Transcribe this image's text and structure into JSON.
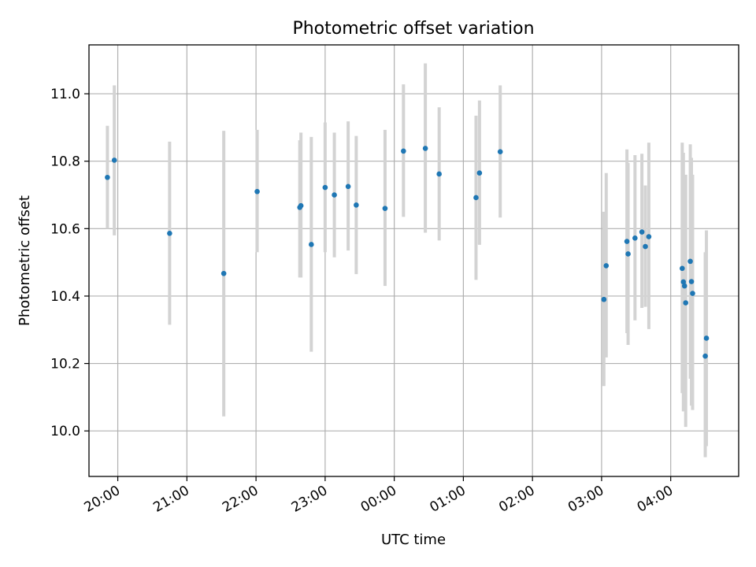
{
  "chart_data": {
    "type": "scatter",
    "title": "Photometric offset variation",
    "xlabel": "UTC time",
    "ylabel": "Photometric offset",
    "x_axis_kind": "time",
    "x_ticks": [
      "20:00",
      "21:00",
      "22:00",
      "23:00",
      "00:00",
      "01:00",
      "02:00",
      "03:00",
      "04:00"
    ],
    "xlim": [
      "19:35",
      "04:59"
    ],
    "y_ticks": [
      10.0,
      10.2,
      10.4,
      10.6,
      10.8,
      11.0
    ],
    "ylim": [
      9.865,
      11.145
    ],
    "grid": true,
    "colors": {
      "points": "#1f77b4",
      "error_bars": "#d3d3d3",
      "grid": "#b0b0b0",
      "axes": "#000000"
    },
    "points": [
      {
        "x": "19:51",
        "y": 10.752,
        "y_low": 10.6,
        "y_high": 10.905
      },
      {
        "x": "19:57",
        "y": 10.803,
        "y_low": 10.58,
        "y_high": 11.025
      },
      {
        "x": "20:45",
        "y": 10.586,
        "y_low": 10.315,
        "y_high": 10.858
      },
      {
        "x": "21:32",
        "y": 10.467,
        "y_low": 10.043,
        "y_high": 10.89
      },
      {
        "x": "22:01",
        "y": 10.71,
        "y_low": 10.53,
        "y_high": 10.893
      },
      {
        "x": "22:38",
        "y": 10.663,
        "y_low": 10.455,
        "y_high": 10.862
      },
      {
        "x": "22:39",
        "y": 10.668,
        "y_low": 10.455,
        "y_high": 10.885
      },
      {
        "x": "22:48",
        "y": 10.553,
        "y_low": 10.235,
        "y_high": 10.872
      },
      {
        "x": "23:00",
        "y": 10.722,
        "y_low": 10.53,
        "y_high": 10.915
      },
      {
        "x": "23:08",
        "y": 10.7,
        "y_low": 10.515,
        "y_high": 10.885
      },
      {
        "x": "23:20",
        "y": 10.725,
        "y_low": 10.535,
        "y_high": 10.918
      },
      {
        "x": "23:27",
        "y": 10.67,
        "y_low": 10.465,
        "y_high": 10.875
      },
      {
        "x": "23:52",
        "y": 10.66,
        "y_low": 10.43,
        "y_high": 10.893
      },
      {
        "x": "00:08",
        "y": 10.83,
        "y_low": 10.635,
        "y_high": 11.028
      },
      {
        "x": "00:27",
        "y": 10.838,
        "y_low": 10.588,
        "y_high": 11.09
      },
      {
        "x": "00:39",
        "y": 10.762,
        "y_low": 10.565,
        "y_high": 10.96
      },
      {
        "x": "01:11",
        "y": 10.692,
        "y_low": 10.448,
        "y_high": 10.935
      },
      {
        "x": "01:14",
        "y": 10.765,
        "y_low": 10.552,
        "y_high": 10.98
      },
      {
        "x": "01:32",
        "y": 10.828,
        "y_low": 10.633,
        "y_high": 11.025
      },
      {
        "x": "03:02",
        "y": 10.39,
        "y_low": 10.133,
        "y_high": 10.65
      },
      {
        "x": "03:04",
        "y": 10.49,
        "y_low": 10.218,
        "y_high": 10.765
      },
      {
        "x": "03:22",
        "y": 10.562,
        "y_low": 10.29,
        "y_high": 10.835
      },
      {
        "x": "03:23",
        "y": 10.525,
        "y_low": 10.255,
        "y_high": 10.795
      },
      {
        "x": "03:29",
        "y": 10.572,
        "y_low": 10.328,
        "y_high": 10.818
      },
      {
        "x": "03:35",
        "y": 10.59,
        "y_low": 10.365,
        "y_high": 10.822
      },
      {
        "x": "03:38",
        "y": 10.547,
        "y_low": 10.368,
        "y_high": 10.728
      },
      {
        "x": "03:41",
        "y": 10.576,
        "y_low": 10.302,
        "y_high": 10.855
      },
      {
        "x": "04:10",
        "y": 10.482,
        "y_low": 10.112,
        "y_high": 10.855
      },
      {
        "x": "04:11",
        "y": 10.442,
        "y_low": 10.058,
        "y_high": 10.825
      },
      {
        "x": "04:12",
        "y": 10.43,
        "y_low": 10.105,
        "y_high": 10.758
      },
      {
        "x": "04:13",
        "y": 10.38,
        "y_low": 10.012,
        "y_high": 10.76
      },
      {
        "x": "04:17",
        "y": 10.503,
        "y_low": 10.155,
        "y_high": 10.85
      },
      {
        "x": "04:18",
        "y": 10.443,
        "y_low": 10.075,
        "y_high": 10.81
      },
      {
        "x": "04:19",
        "y": 10.408,
        "y_low": 10.062,
        "y_high": 10.76
      },
      {
        "x": "04:30",
        "y": 10.222,
        "y_low": 9.922,
        "y_high": 10.53
      },
      {
        "x": "04:31",
        "y": 10.275,
        "y_low": 9.955,
        "y_high": 10.595
      }
    ]
  }
}
